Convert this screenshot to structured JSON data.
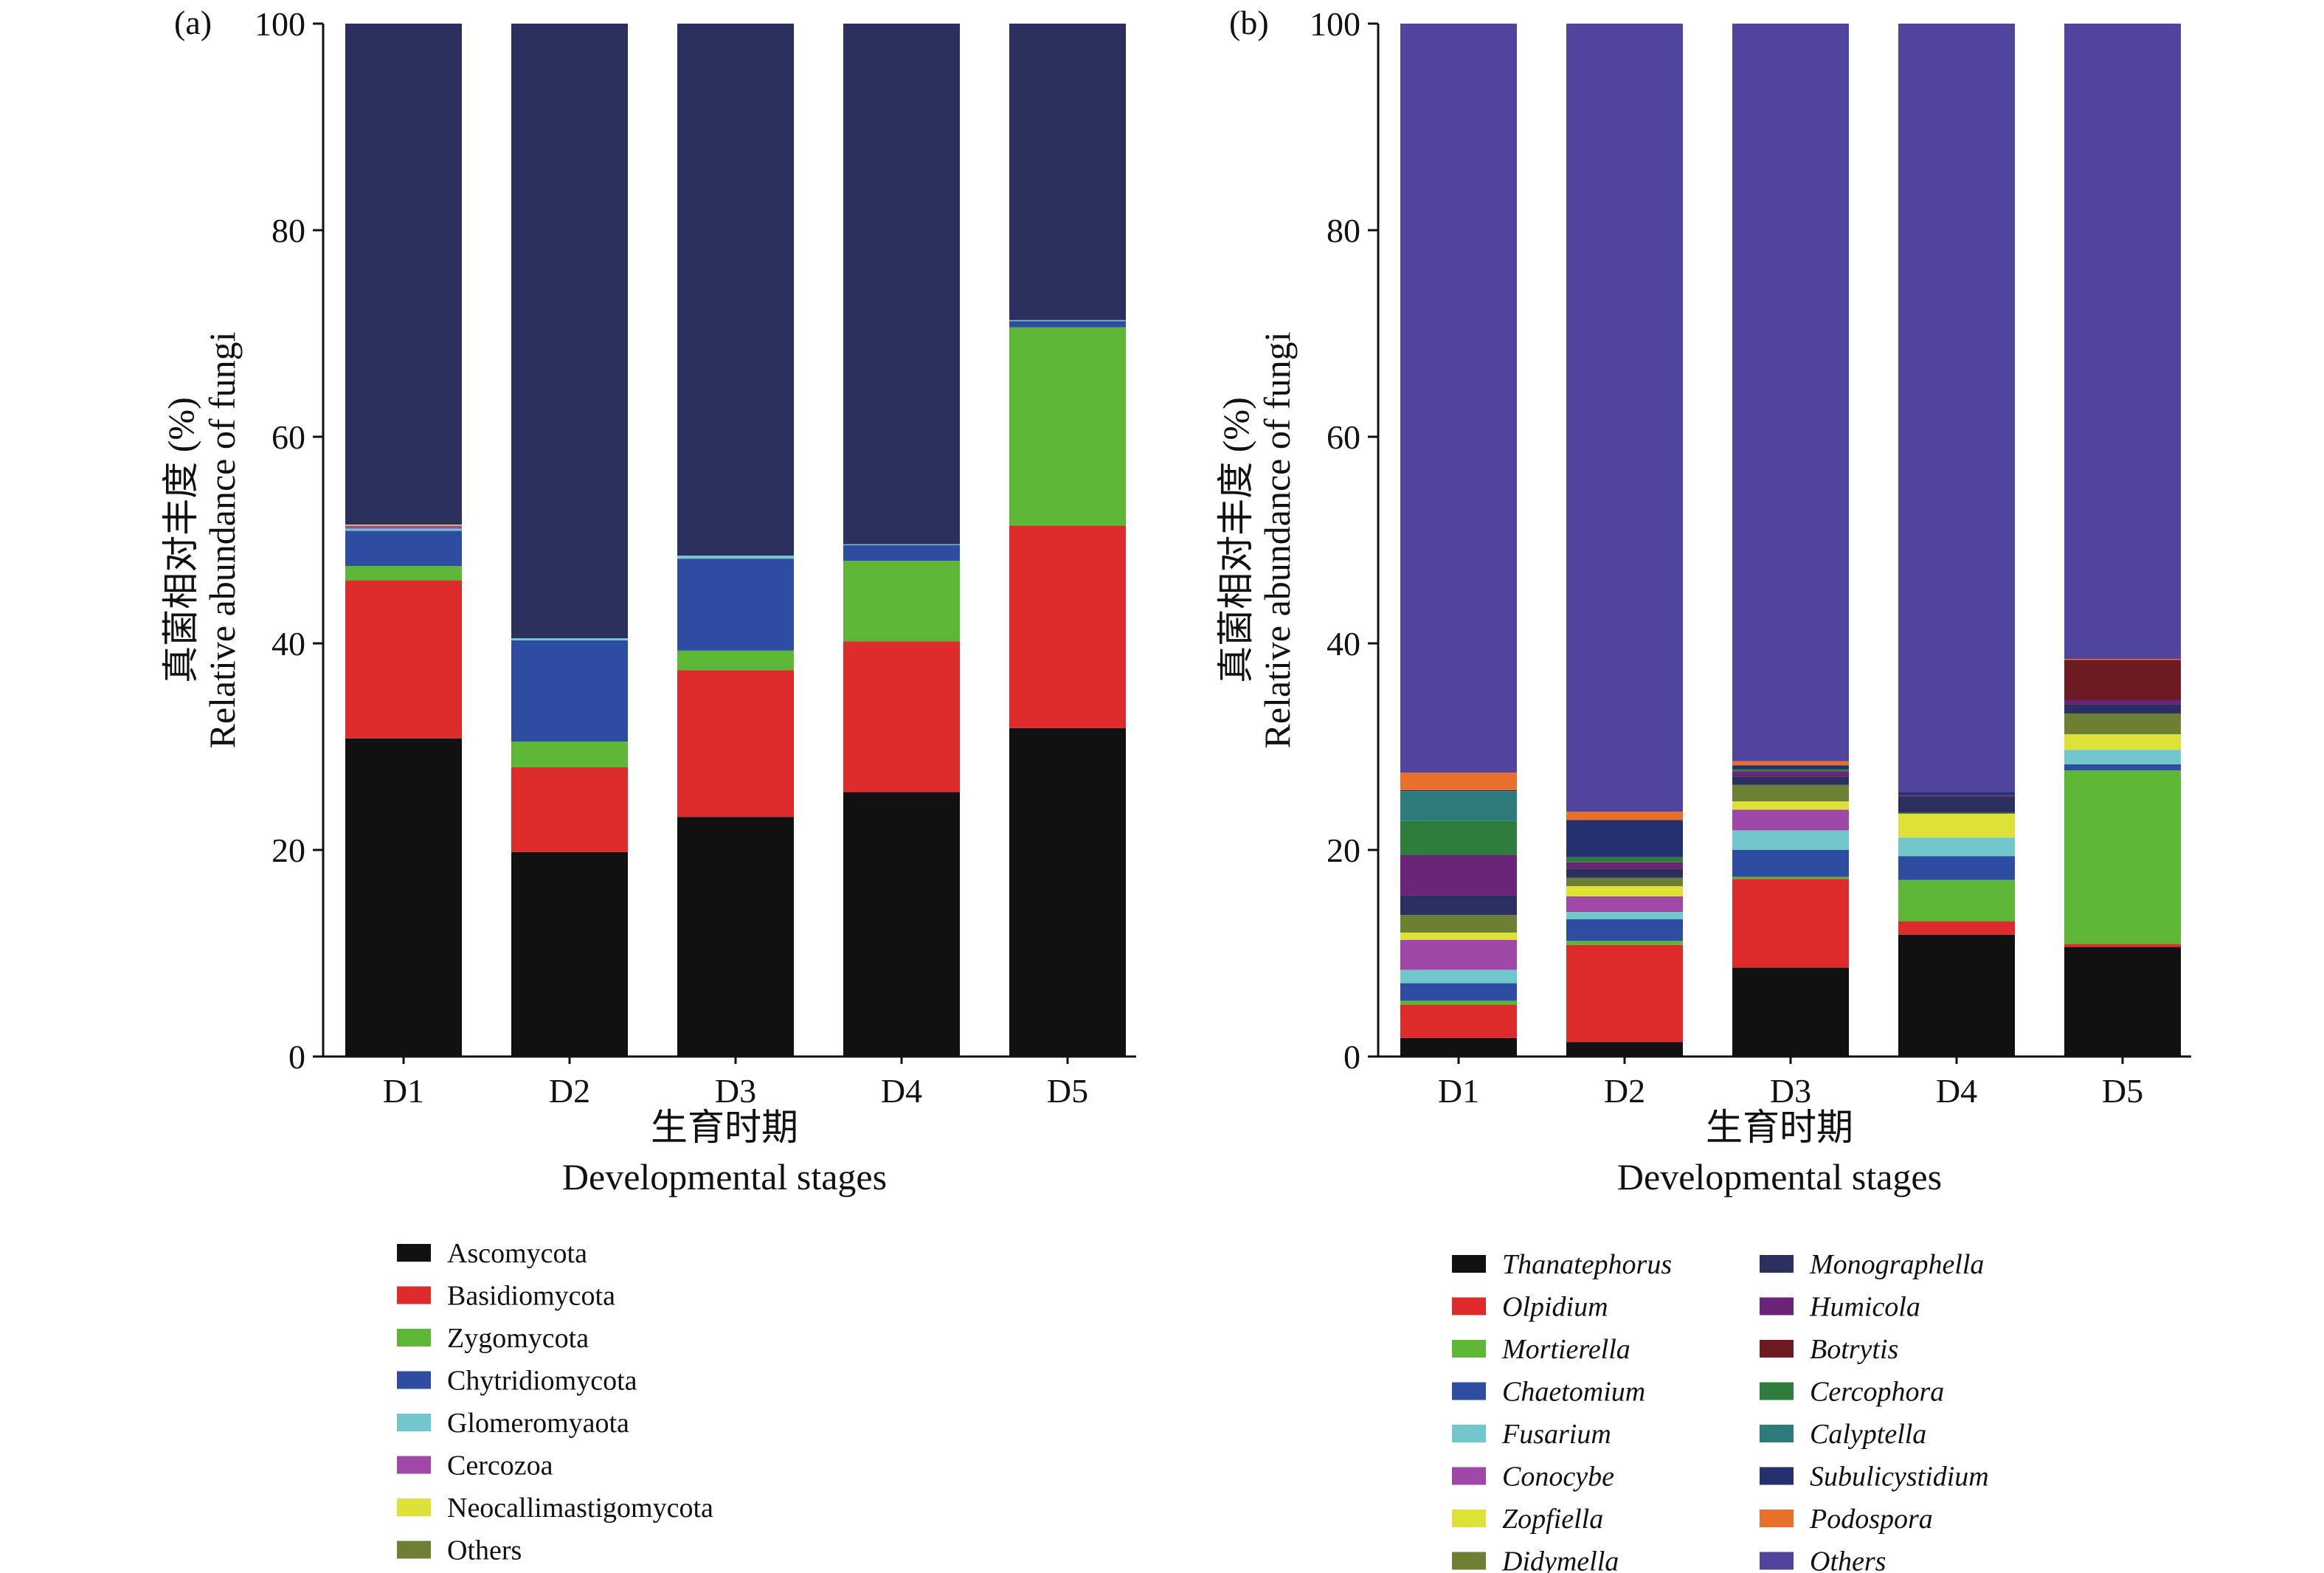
{
  "chart_data": [
    {
      "panel": "(a)",
      "type": "bar",
      "stacked": true,
      "categories": [
        "D1",
        "D2",
        "D3",
        "D4",
        "D5"
      ],
      "xlabel_cn": "生育时期",
      "xlabel_en": "Developmental stages",
      "ylabel_cn": "真菌相对丰度 (%)",
      "ylabel_en": "Relative abundance of fungi",
      "ylim": [
        0,
        100
      ],
      "yticks": [
        0,
        20,
        40,
        60,
        80,
        100
      ],
      "legend_italic": false,
      "series": [
        {
          "name": "Ascomycota",
          "color": "#111111",
          "values": [
            30.8,
            19.8,
            23.2,
            25.6,
            31.8
          ]
        },
        {
          "name": "Basidiomycota",
          "color": "#DD2A2A",
          "values": [
            15.3,
            8.2,
            14.2,
            14.6,
            19.6
          ]
        },
        {
          "name": "Zygomycota",
          "color": "#5DB636",
          "values": [
            1.4,
            2.5,
            1.9,
            7.8,
            19.2
          ]
        },
        {
          "name": "Chytridiomycota",
          "color": "#2F4DA0",
          "values": [
            3.4,
            9.8,
            8.9,
            1.5,
            0.6
          ]
        },
        {
          "name": "Glomeromyaota",
          "color": "#72C7CC",
          "values": [
            0.2,
            0.2,
            0.3,
            0.1,
            0.1
          ]
        },
        {
          "name": "Cercozoa",
          "color": "#A048A8",
          "values": [
            0.3,
            0.0,
            0.0,
            0.0,
            0.0
          ]
        },
        {
          "name": "Neocallimastigomycota",
          "color": "#DEE138",
          "values": [
            0.1,
            0.0,
            0.0,
            0.0,
            0.0
          ]
        },
        {
          "name": "Others",
          "color": "#6D7F33",
          "values": [
            0.0,
            0.0,
            0.0,
            0.0,
            0.0
          ]
        },
        {
          "name": "",
          "color": "#2B2F5E",
          "values": [
            48.5,
            59.5,
            51.5,
            50.4,
            28.7
          ]
        }
      ]
    },
    {
      "panel": "(b)",
      "type": "bar",
      "stacked": true,
      "categories": [
        "D1",
        "D2",
        "D3",
        "D4",
        "D5"
      ],
      "xlabel_cn": "生育时期",
      "xlabel_en": "Developmental stages",
      "ylabel_cn": "真菌相对丰度 (%)",
      "ylabel_en": "Relative abundance of fungi",
      "ylim": [
        0,
        100
      ],
      "yticks": [
        0,
        20,
        40,
        60,
        80,
        100
      ],
      "legend_italic": true,
      "series": [
        {
          "name": "Thanatephorus",
          "color": "#111111",
          "values": [
            1.8,
            1.4,
            8.6,
            11.8,
            10.6
          ]
        },
        {
          "name": "Olpidium",
          "color": "#DD2A2A",
          "values": [
            3.2,
            9.4,
            8.6,
            1.3,
            0.3
          ]
        },
        {
          "name": "Mortierella",
          "color": "#5DB636",
          "values": [
            0.4,
            0.4,
            0.2,
            4.0,
            16.8
          ]
        },
        {
          "name": "Chaetomium",
          "color": "#2F4DA0",
          "values": [
            1.7,
            2.1,
            2.6,
            2.3,
            0.6
          ]
        },
        {
          "name": "Fusarium",
          "color": "#72C7CC",
          "values": [
            1.3,
            0.7,
            1.9,
            1.8,
            1.4
          ]
        },
        {
          "name": "Conocybe",
          "color": "#A048A8",
          "values": [
            2.9,
            1.5,
            2.0,
            0.0,
            0.0
          ]
        },
        {
          "name": "Zopfiella",
          "color": "#DEE138",
          "values": [
            0.7,
            1.0,
            0.8,
            2.3,
            1.5
          ]
        },
        {
          "name": "Didymella",
          "color": "#6D7F33",
          "values": [
            1.7,
            0.8,
            1.6,
            0.1,
            2.0
          ]
        },
        {
          "name": "Monographella",
          "color": "#2B2F5E",
          "values": [
            1.9,
            0.9,
            0.8,
            1.6,
            0.9
          ]
        },
        {
          "name": "Humicola",
          "color": "#6A2478",
          "values": [
            3.9,
            0.6,
            0.5,
            0.1,
            0.4
          ]
        },
        {
          "name": "Botrytis",
          "color": "#6E1A22",
          "values": [
            0.0,
            0.0,
            0.0,
            0.0,
            3.9
          ]
        },
        {
          "name": "Cercophora",
          "color": "#2F7D3C",
          "values": [
            3.3,
            0.5,
            0.2,
            0.0,
            0.0
          ]
        },
        {
          "name": "Calyptella",
          "color": "#2E7B7B",
          "values": [
            2.9,
            0.0,
            0.0,
            0.0,
            0.0
          ]
        },
        {
          "name": "Subulicystidium",
          "color": "#25306F",
          "values": [
            0.1,
            3.6,
            0.4,
            0.3,
            0.0
          ]
        },
        {
          "name": "Podospora",
          "color": "#E8702C",
          "values": [
            1.7,
            0.8,
            0.4,
            0.0,
            0.1
          ]
        },
        {
          "name": "Others",
          "color": "#51449C",
          "values": [
            72.5,
            76.3,
            71.4,
            74.4,
            61.5
          ]
        }
      ]
    }
  ]
}
